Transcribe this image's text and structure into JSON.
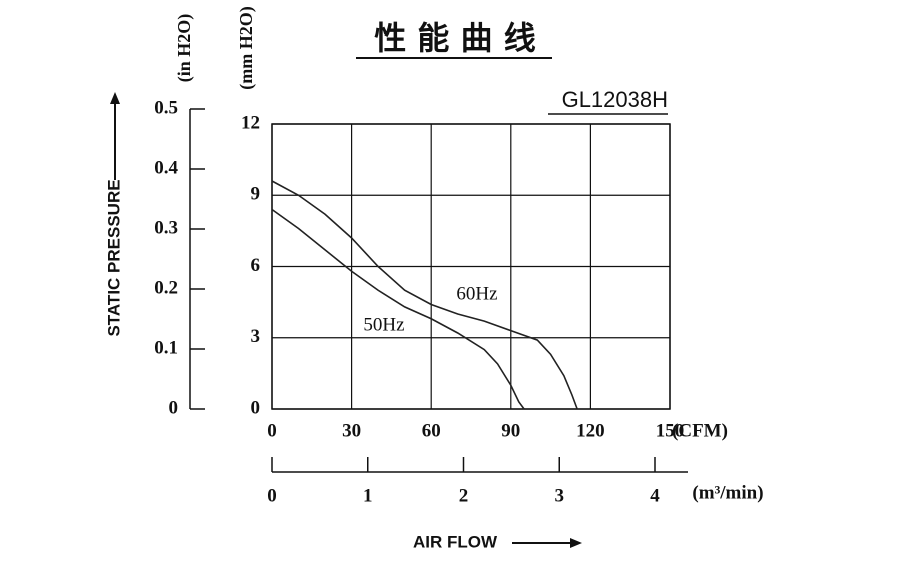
{
  "chart_data": {
    "type": "line",
    "title": "性 能 曲 线",
    "subtitle": "GL12038H",
    "x_label": "AIR FLOW",
    "y_label": "STATIC PRESSURE",
    "x_unit": "(CFM)",
    "x2_unit": "(m³/min)",
    "y_unit": "(mm H2O)",
    "y2_unit": "(in H2O)",
    "xlim": [
      0,
      150
    ],
    "xticks": [
      0,
      30,
      60,
      90,
      120,
      150
    ],
    "x2lim": [
      0,
      4
    ],
    "x2ticks": [
      0,
      1,
      2,
      3,
      4
    ],
    "ylim": [
      0,
      12
    ],
    "yticks": [
      0,
      3,
      6,
      9,
      12
    ],
    "y2lim": [
      0,
      0.5
    ],
    "y2ticks": [
      0,
      0.1,
      0.2,
      0.3,
      0.4,
      0.5
    ],
    "grid": true,
    "series": [
      {
        "name": "60Hz",
        "color": "#222222",
        "x": [
          0,
          10,
          20,
          30,
          40,
          50,
          60,
          70,
          80,
          90,
          100,
          105,
          110,
          113,
          115
        ],
        "values": [
          9.6,
          9.0,
          8.2,
          7.2,
          6.0,
          5.0,
          4.4,
          4.0,
          3.7,
          3.3,
          2.9,
          2.3,
          1.4,
          0.6,
          0
        ]
      },
      {
        "name": "50Hz",
        "color": "#222222",
        "x": [
          0,
          10,
          20,
          30,
          40,
          50,
          60,
          70,
          80,
          85,
          90,
          93,
          95
        ],
        "values": [
          8.4,
          7.6,
          6.7,
          5.8,
          5.0,
          4.3,
          3.8,
          3.2,
          2.5,
          1.9,
          1.0,
          0.3,
          0
        ]
      }
    ]
  }
}
